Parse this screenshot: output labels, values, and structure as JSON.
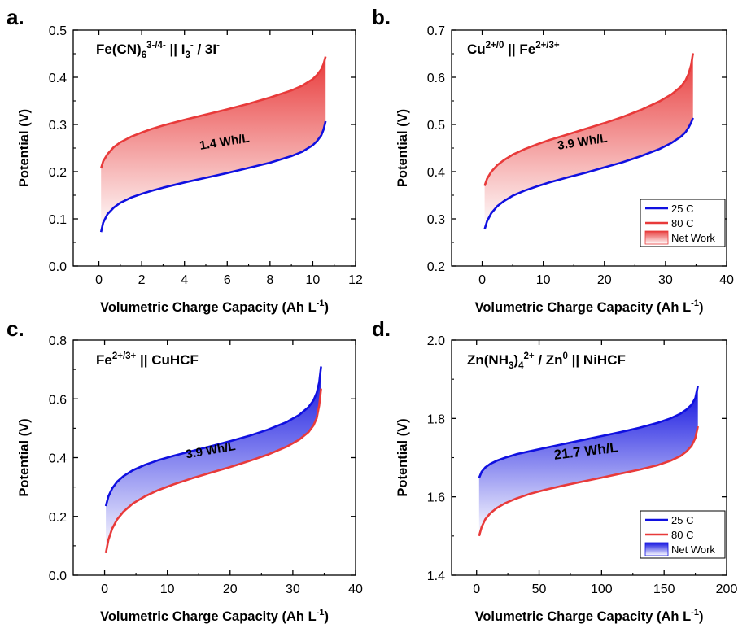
{
  "colors": {
    "blue": "#1010e0",
    "red": "#e83a3a",
    "axis": "#000000"
  },
  "chart_data": [
    {
      "type": "line",
      "panel_label": "a.",
      "title_parts": [
        {
          "text": "Fe(CN)",
          "pos": "normal"
        },
        {
          "text": "6",
          "pos": "sub"
        },
        {
          "text": "3-/4-",
          "pos": "sup"
        },
        {
          "text": " || I",
          "pos": "normal"
        },
        {
          "text": "3",
          "pos": "sub"
        },
        {
          "text": "-",
          "pos": "sup"
        },
        {
          "text": " / 3I",
          "pos": "normal"
        },
        {
          "text": "-",
          "pos": "sup"
        }
      ],
      "xlabel_main": "Volumetric Charge Capacity (Ah L",
      "xlabel_sup": "-1",
      "xlabel_end": ")",
      "ylabel": "Potential (V)",
      "xlim": [
        -1.2,
        12
      ],
      "ylim": [
        0.0,
        0.5
      ],
      "xticks": [
        0,
        2,
        4,
        6,
        8,
        10,
        12
      ],
      "yticks": [
        0.0,
        0.1,
        0.2,
        0.3,
        0.4,
        0.5
      ],
      "x_decimals": 0,
      "y_decimals": 1,
      "fill_color": "#e83a3a",
      "annotation": "1.4 Wh/L",
      "annotation_pos": [
        5.9,
        0.255
      ],
      "annotation_rotate": -9,
      "series": [
        {
          "name": "80 C",
          "color": "#e83a3a",
          "x": [
            0.1,
            0.2,
            0.4,
            0.7,
            1.0,
            1.5,
            2,
            2.5,
            3,
            4,
            5,
            6,
            7,
            8,
            9,
            9.5,
            10,
            10.2,
            10.4,
            10.5,
            10.6
          ],
          "y": [
            0.207,
            0.222,
            0.237,
            0.252,
            0.262,
            0.274,
            0.283,
            0.291,
            0.298,
            0.31,
            0.321,
            0.332,
            0.344,
            0.357,
            0.372,
            0.382,
            0.396,
            0.405,
            0.417,
            0.428,
            0.444
          ]
        },
        {
          "name": "25 C",
          "color": "#1010e0",
          "x": [
            0.1,
            0.2,
            0.4,
            0.7,
            1.0,
            1.5,
            2,
            2.5,
            3,
            4,
            5,
            6,
            7,
            8,
            9,
            9.5,
            10,
            10.2,
            10.4,
            10.5,
            10.6
          ],
          "y": [
            0.072,
            0.092,
            0.11,
            0.124,
            0.134,
            0.145,
            0.153,
            0.16,
            0.166,
            0.177,
            0.187,
            0.197,
            0.208,
            0.219,
            0.233,
            0.242,
            0.256,
            0.265,
            0.277,
            0.289,
            0.307
          ]
        }
      ],
      "legend": null
    },
    {
      "type": "line",
      "panel_label": "b.",
      "title_parts": [
        {
          "text": "Cu",
          "pos": "normal"
        },
        {
          "text": "2+/0",
          "pos": "sup"
        },
        {
          "text": "  || Fe",
          "pos": "normal"
        },
        {
          "text": "2+/3+",
          "pos": "sup"
        }
      ],
      "xlabel_main": "Volumetric Charge Capacity (Ah L",
      "xlabel_sup": "-1",
      "xlabel_end": ")",
      "ylabel": "Potential (V)",
      "xlim": [
        -5,
        40
      ],
      "ylim": [
        0.2,
        0.7
      ],
      "xticks": [
        0,
        10,
        20,
        30,
        40
      ],
      "yticks": [
        0.2,
        0.3,
        0.4,
        0.5,
        0.6,
        0.7
      ],
      "x_decimals": 0,
      "y_decimals": 1,
      "fill_color": "#e83a3a",
      "annotation": "3.9 Wh/L",
      "annotation_pos": [
        16.5,
        0.455
      ],
      "annotation_rotate": -9,
      "series": [
        {
          "name": "80 C",
          "color": "#e83a3a",
          "x": [
            0.4,
            0.8,
            1.5,
            2.5,
            3.5,
            5,
            7,
            9,
            11,
            14,
            17,
            20,
            23,
            26,
            29,
            31,
            32.5,
            33.3,
            33.8,
            34.2,
            34.5
          ],
          "y": [
            0.37,
            0.385,
            0.4,
            0.414,
            0.424,
            0.436,
            0.448,
            0.458,
            0.467,
            0.479,
            0.491,
            0.503,
            0.516,
            0.531,
            0.549,
            0.564,
            0.58,
            0.594,
            0.608,
            0.626,
            0.651
          ]
        },
        {
          "name": "25 C",
          "color": "#1010e0",
          "x": [
            0.4,
            0.8,
            1.5,
            2.5,
            3.5,
            5,
            7,
            9,
            11,
            14,
            17,
            20,
            23,
            26,
            29,
            31,
            32.5,
            33.3,
            33.8,
            34.2,
            34.5
          ],
          "y": [
            0.278,
            0.295,
            0.312,
            0.327,
            0.337,
            0.349,
            0.36,
            0.369,
            0.377,
            0.388,
            0.398,
            0.409,
            0.42,
            0.433,
            0.448,
            0.461,
            0.474,
            0.484,
            0.494,
            0.504,
            0.514
          ]
        }
      ],
      "legend": {
        "position": "bottom-right",
        "items": [
          "25 C",
          "80 C",
          "Net Work"
        ],
        "item_colors": [
          "#1010e0",
          "#e83a3a"
        ]
      }
    },
    {
      "type": "line",
      "panel_label": "c.",
      "title_parts": [
        {
          "text": "Fe",
          "pos": "normal"
        },
        {
          "text": "2+/3+",
          "pos": "sup"
        },
        {
          "text": " || CuHCF",
          "pos": "normal"
        }
      ],
      "xlabel_main": "Volumetric Charge Capacity (Ah L",
      "xlabel_sup": "-1",
      "xlabel_end": ")",
      "ylabel": "Potential (V)",
      "xlim": [
        -5,
        40
      ],
      "ylim": [
        0.0,
        0.8
      ],
      "xticks": [
        0,
        10,
        20,
        30,
        40
      ],
      "yticks": [
        0.0,
        0.2,
        0.4,
        0.6,
        0.8
      ],
      "x_decimals": 0,
      "y_decimals": 1,
      "fill_color": "#1010e0",
      "annotation": "3.9 Wh/L",
      "annotation_pos": [
        17,
        0.412
      ],
      "annotation_rotate": -10,
      "series": [
        {
          "name": "25 C",
          "color": "#1010e0",
          "x": [
            0.2,
            0.6,
            1.2,
            2,
            3,
            4.5,
            6.5,
            8.5,
            11,
            14,
            17,
            20,
            23,
            26,
            29,
            31,
            32.5,
            33.3,
            33.8,
            34.2,
            34.5
          ],
          "y": [
            0.235,
            0.268,
            0.295,
            0.318,
            0.337,
            0.357,
            0.376,
            0.391,
            0.406,
            0.423,
            0.439,
            0.456,
            0.474,
            0.495,
            0.521,
            0.545,
            0.572,
            0.595,
            0.62,
            0.656,
            0.71
          ]
        },
        {
          "name": "80 C",
          "color": "#e83a3a",
          "x": [
            0.2,
            0.6,
            1.2,
            2,
            3,
            4.5,
            6.5,
            8.5,
            11,
            14,
            17,
            20,
            23,
            26,
            29,
            31,
            32.5,
            33.3,
            33.8,
            34.2,
            34.5
          ],
          "y": [
            0.075,
            0.12,
            0.158,
            0.19,
            0.216,
            0.244,
            0.269,
            0.289,
            0.309,
            0.33,
            0.349,
            0.368,
            0.388,
            0.41,
            0.437,
            0.461,
            0.487,
            0.51,
            0.534,
            0.578,
            0.635
          ]
        }
      ],
      "legend": null
    },
    {
      "type": "line",
      "panel_label": "d.",
      "title_parts": [
        {
          "text": "Zn(NH",
          "pos": "normal"
        },
        {
          "text": "3",
          "pos": "sub"
        },
        {
          "text": ")",
          "pos": "normal"
        },
        {
          "text": "4",
          "pos": "sub"
        },
        {
          "text": "2+",
          "pos": "sup"
        },
        {
          "text": " / Zn",
          "pos": "normal"
        },
        {
          "text": "0",
          "pos": "sup"
        },
        {
          "text": " || NiHCF",
          "pos": "normal"
        }
      ],
      "xlabel_main": "Volumetric Charge Capacity (Ah L",
      "xlabel_sup": "-1",
      "xlabel_end": ")",
      "ylabel": "Potential (V)",
      "xlim": [
        -20,
        200
      ],
      "ylim": [
        1.4,
        2.0
      ],
      "xticks": [
        0,
        50,
        100,
        150,
        200
      ],
      "yticks": [
        1.4,
        1.6,
        1.8,
        2.0
      ],
      "x_decimals": 0,
      "y_decimals": 1,
      "fill_color": "#1010e0",
      "annotation": "21.7 Wh/L",
      "annotation_pos": [
        88,
        1.705
      ],
      "annotation_rotate": -7,
      "series": [
        {
          "name": "25 C",
          "color": "#1010e0",
          "x": [
            2,
            4,
            7,
            11,
            16,
            23,
            32,
            42,
            55,
            70,
            85,
            100,
            115,
            130,
            145,
            155,
            163,
            168,
            172,
            175,
            177
          ],
          "y": [
            1.648,
            1.664,
            1.675,
            1.684,
            1.692,
            1.7,
            1.709,
            1.716,
            1.725,
            1.735,
            1.745,
            1.755,
            1.765,
            1.776,
            1.789,
            1.8,
            1.812,
            1.823,
            1.835,
            1.852,
            1.883
          ]
        },
        {
          "name": "80 C",
          "color": "#e83a3a",
          "x": [
            2,
            4,
            7,
            11,
            16,
            23,
            32,
            42,
            55,
            70,
            85,
            100,
            115,
            130,
            145,
            155,
            163,
            168,
            172,
            175,
            177
          ],
          "y": [
            1.5,
            1.523,
            1.543,
            1.558,
            1.571,
            1.584,
            1.596,
            1.607,
            1.618,
            1.629,
            1.639,
            1.649,
            1.659,
            1.669,
            1.681,
            1.692,
            1.704,
            1.716,
            1.73,
            1.75,
            1.78
          ]
        }
      ],
      "legend": {
        "position": "bottom-right",
        "items": [
          "25 C",
          "80 C",
          "Net Work"
        ],
        "item_colors": [
          "#1010e0",
          "#e83a3a"
        ]
      }
    }
  ]
}
